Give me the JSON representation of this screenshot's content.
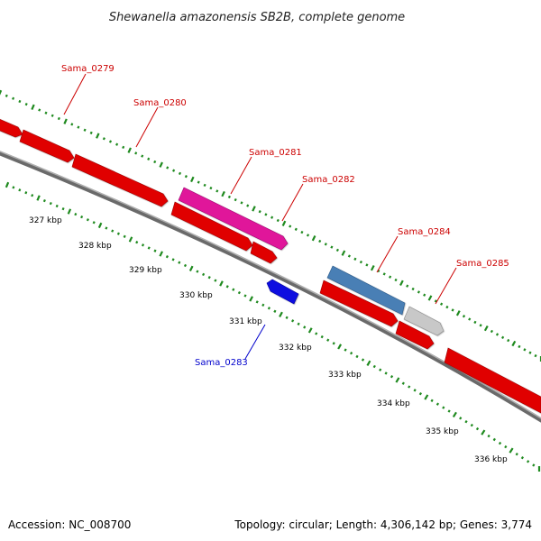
{
  "title": "Shewanella amazonensis SB2B, complete genome",
  "footer": {
    "accession": "Accession: NC_008700",
    "summary": "Topology: circular; Length: 4,306,142 bp; Genes: 3,774"
  },
  "colors": {
    "backbone": "#8a8a8a",
    "tick": "#1f8a1f",
    "label_red": "#cc0000",
    "label_blue": "#0000cc"
  },
  "scale": {
    "unit": "kbp",
    "labels": [
      "327 kbp",
      "328 kbp",
      "329 kbp",
      "330 kbp",
      "331 kbp",
      "332 kbp",
      "333 kbp",
      "334 kbp",
      "335 kbp",
      "336 kbp"
    ]
  },
  "genes": [
    {
      "id": "g0279",
      "label": "Sama_0279",
      "color": "#e00000",
      "strand": "+"
    },
    {
      "id": "g0280",
      "label": "Sama_0280",
      "color": "#e00000",
      "strand": "+"
    },
    {
      "id": "g0281",
      "label": "Sama_0281",
      "color": "#e0189a",
      "strand": "+"
    },
    {
      "id": "g0282",
      "label": "Sama_0282",
      "color": "#e00000",
      "strand": "+"
    },
    {
      "id": "g0283",
      "label": "Sama_0283",
      "color": "#1010e0",
      "strand": "-"
    },
    {
      "id": "g0284",
      "label": "Sama_0284",
      "color": "#4a7fb5",
      "strand": "+"
    },
    {
      "id": "g0285",
      "label": "Sama_0285",
      "color": "#c8c8c8",
      "strand": "+"
    }
  ]
}
